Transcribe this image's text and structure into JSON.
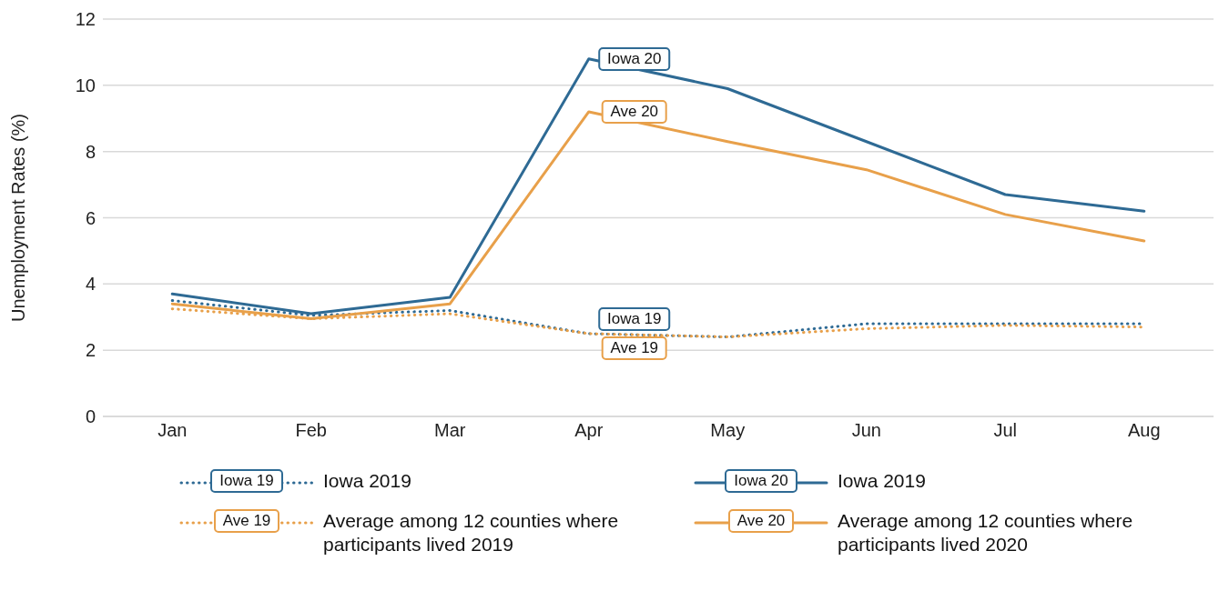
{
  "chart_data": {
    "type": "line",
    "ylabel": "Unemployment Rates (%)",
    "categories": [
      "Jan",
      "Feb",
      "Mar",
      "Apr",
      "May",
      "Jun",
      "Jul",
      "Aug"
    ],
    "series": [
      {
        "name": "Iowa 2019",
        "color": "#2e6a94",
        "line_style": "dotted",
        "values": [
          3.5,
          3.05,
          3.2,
          2.5,
          2.4,
          2.8,
          2.8,
          2.8
        ]
      },
      {
        "name": "Average among 12 counties where participants lived 2019",
        "color": "#e8a04a",
        "line_style": "dotted",
        "values": [
          3.25,
          2.95,
          3.1,
          2.5,
          2.4,
          2.65,
          2.75,
          2.7
        ]
      },
      {
        "name": "Iowa 2019",
        "color": "#2e6a94",
        "line_style": "solid",
        "values": [
          3.7,
          3.1,
          3.6,
          10.8,
          9.9,
          8.3,
          6.7,
          6.2
        ]
      },
      {
        "name": "Average among 12 counties where participants lived 2020",
        "color": "#e8a04a",
        "line_style": "solid",
        "values": [
          3.4,
          2.95,
          3.4,
          9.2,
          8.3,
          7.45,
          6.1,
          5.3
        ]
      }
    ],
    "annotations": [
      {
        "text": "Iowa 19",
        "x": "Apr",
        "y": 2.5
      },
      {
        "text": "Ave 19",
        "x": "Apr",
        "y": 2.5
      },
      {
        "text": "Iowa 20",
        "x": "Apr",
        "y": 10.8
      },
      {
        "text": "Ave 20",
        "x": "Apr",
        "y": 9.2
      }
    ],
    "ylim": [
      0,
      12
    ],
    "yticks": [
      0,
      2,
      4,
      6,
      8,
      10,
      12
    ],
    "grid": "y",
    "legend": "bottom",
    "marker": "none"
  }
}
